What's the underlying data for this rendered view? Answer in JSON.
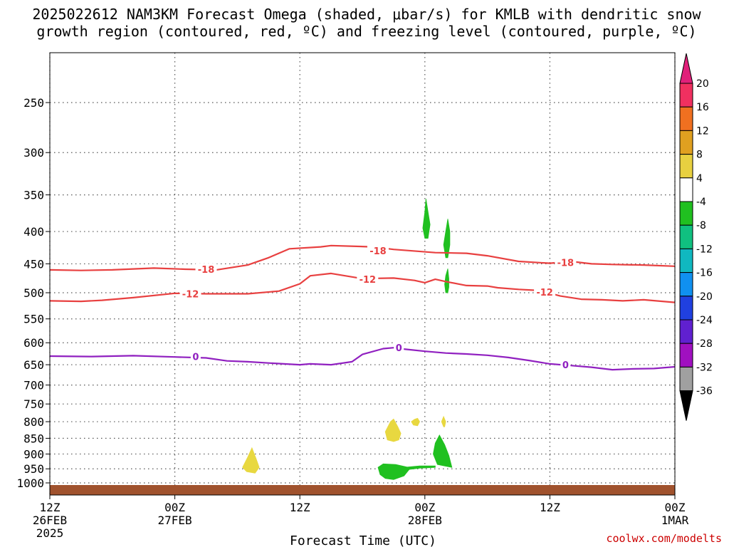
{
  "chart_data": {
    "type": "contour",
    "title_line1": "2025022612 NAM3KM Forecast Omega (shaded, μbar/s) for KMLB with dendritic snow",
    "title_line2": "growth region (contoured, red, ºC) and freezing level (contoured, purple, ºC)",
    "xlabel": "Forecast Time (UTC)",
    "credit": "coolwx.com/modelts",
    "xlim": [
      0,
      60
    ],
    "x_ticks": [
      {
        "x": 0,
        "lines": [
          "12Z",
          "26FEB",
          "2025"
        ]
      },
      {
        "x": 12,
        "lines": [
          "00Z",
          "27FEB"
        ]
      },
      {
        "x": 24,
        "lines": [
          "12Z"
        ]
      },
      {
        "x": 36,
        "lines": [
          "00Z",
          "28FEB"
        ]
      },
      {
        "x": 48,
        "lines": [
          "12Z"
        ]
      },
      {
        "x": 60,
        "lines": [
          "00Z",
          "1MAR"
        ]
      }
    ],
    "y_levels": [
      250,
      300,
      350,
      400,
      450,
      500,
      550,
      600,
      650,
      700,
      750,
      800,
      850,
      900,
      950,
      1000
    ],
    "ylim": [
      200,
      1050
    ],
    "y_scale": "log-pressure",
    "grid": true,
    "ground_color": "#a0522d",
    "colorbar": {
      "labels": [
        "20",
        "16",
        "12",
        "8",
        "4",
        "-4",
        "-8",
        "-12",
        "-16",
        "-20",
        "-24",
        "-28",
        "-32",
        "-36"
      ],
      "colors": [
        "#f03060",
        "#f07020",
        "#e0a020",
        "#e8d040",
        "#ffffff",
        "#20c020",
        "#10c080",
        "#10b8c0",
        "#1090f0",
        "#2040e0",
        "#6020d0",
        "#a010c0",
        "#a0a0a0"
      ],
      "top_arrow_color": "#e0207a",
      "bottom_arrow_color": "#000000"
    },
    "contours": [
      {
        "name": "-18",
        "color": "#e84040",
        "points": [
          [
            0,
            460
          ],
          [
            3,
            461
          ],
          [
            6,
            460
          ],
          [
            10,
            457
          ],
          [
            13,
            459
          ],
          [
            16,
            460
          ],
          [
            19,
            452
          ],
          [
            21,
            440
          ],
          [
            23,
            426
          ],
          [
            26,
            423
          ],
          [
            27,
            421
          ],
          [
            31,
            423
          ],
          [
            33,
            427
          ],
          [
            37,
            432
          ],
          [
            40,
            433
          ],
          [
            42,
            437
          ],
          [
            45,
            446
          ],
          [
            48,
            449
          ],
          [
            50,
            446
          ],
          [
            52,
            450
          ],
          [
            54,
            451
          ],
          [
            57,
            452
          ],
          [
            60,
            454
          ]
        ],
        "labels": [
          [
            15,
            459
          ],
          [
            31.5,
            429
          ],
          [
            49.5,
            448
          ]
        ]
      },
      {
        "name": "-12",
        "color": "#e84040",
        "points": [
          [
            0,
            515
          ],
          [
            3,
            516
          ],
          [
            5,
            514
          ],
          [
            8,
            509
          ],
          [
            12,
            501
          ],
          [
            15,
            502
          ],
          [
            19,
            502
          ],
          [
            22,
            497
          ],
          [
            24,
            484
          ],
          [
            25,
            470
          ],
          [
            27,
            466
          ],
          [
            30,
            475
          ],
          [
            33,
            474
          ],
          [
            35,
            478
          ],
          [
            36,
            482
          ],
          [
            37,
            476
          ],
          [
            38,
            480
          ],
          [
            40,
            487
          ],
          [
            42,
            488
          ],
          [
            43,
            491
          ],
          [
            45,
            494
          ],
          [
            47,
            496
          ],
          [
            49,
            506
          ],
          [
            51,
            512
          ],
          [
            53,
            513
          ],
          [
            55,
            515
          ],
          [
            57,
            513
          ],
          [
            60,
            518
          ]
        ],
        "labels": [
          [
            13.5,
            502
          ],
          [
            30.5,
            476
          ],
          [
            47.5,
            499
          ]
        ]
      },
      {
        "name": "0",
        "color": "#9020c0",
        "points": [
          [
            0,
            630
          ],
          [
            4,
            631
          ],
          [
            8,
            629
          ],
          [
            12,
            632
          ],
          [
            15,
            634
          ],
          [
            17,
            641
          ],
          [
            19,
            643
          ],
          [
            21,
            646
          ],
          [
            24,
            650
          ],
          [
            25,
            648
          ],
          [
            27,
            650
          ],
          [
            29,
            643
          ],
          [
            30,
            626
          ],
          [
            32,
            613
          ],
          [
            33,
            611
          ],
          [
            34,
            614
          ],
          [
            36,
            619
          ],
          [
            38,
            623
          ],
          [
            40,
            625
          ],
          [
            42,
            628
          ],
          [
            44,
            633
          ],
          [
            46,
            640
          ],
          [
            48,
            648
          ],
          [
            50,
            652
          ],
          [
            52,
            656
          ],
          [
            54,
            662
          ],
          [
            56,
            660
          ],
          [
            58,
            659
          ],
          [
            60,
            655
          ]
        ],
        "labels": [
          [
            14,
            631
          ],
          [
            33.5,
            611
          ],
          [
            49.5,
            650
          ]
        ]
      }
    ],
    "shaded_regions": [
      {
        "name": "omega-pos-1",
        "color": "#e8d840",
        "points": [
          [
            18.9,
            960
          ],
          [
            18.5,
            945
          ],
          [
            19.0,
            910
          ],
          [
            19.4,
            880
          ],
          [
            19.8,
            915
          ],
          [
            20.1,
            945
          ],
          [
            19.7,
            965
          ]
        ]
      },
      {
        "name": "omega-pos-2",
        "color": "#e8d840",
        "points": [
          [
            32.4,
            855
          ],
          [
            32.2,
            830
          ],
          [
            32.7,
            800
          ],
          [
            33.0,
            792
          ],
          [
            33.4,
            815
          ],
          [
            33.7,
            835
          ],
          [
            33.5,
            855
          ],
          [
            33.0,
            860
          ]
        ]
      },
      {
        "name": "omega-pos-3",
        "color": "#e8d840",
        "points": [
          [
            34.9,
            810
          ],
          [
            34.7,
            800
          ],
          [
            35.0,
            793
          ],
          [
            35.3,
            790
          ],
          [
            35.5,
            800
          ],
          [
            35.3,
            812
          ]
        ]
      },
      {
        "name": "omega-pos-4",
        "color": "#e8d840",
        "points": [
          [
            37.8,
            815
          ],
          [
            37.6,
            800
          ],
          [
            37.8,
            785
          ],
          [
            38.0,
            800
          ],
          [
            37.9,
            815
          ]
        ]
      },
      {
        "name": "omega-neg-1",
        "color": "#20c020",
        "points": [
          [
            36.0,
            410
          ],
          [
            35.8,
            395
          ],
          [
            36.0,
            372
          ],
          [
            36.1,
            355
          ],
          [
            36.3,
            372
          ],
          [
            36.5,
            390
          ],
          [
            36.3,
            410
          ]
        ]
      },
      {
        "name": "omega-neg-2",
        "color": "#20c020",
        "points": [
          [
            38.0,
            440
          ],
          [
            37.8,
            420
          ],
          [
            38.0,
            400
          ],
          [
            38.2,
            382
          ],
          [
            38.4,
            400
          ],
          [
            38.4,
            420
          ],
          [
            38.2,
            440
          ]
        ]
      },
      {
        "name": "omega-neg-3",
        "color": "#20c020",
        "points": [
          [
            38.0,
            500
          ],
          [
            37.9,
            485
          ],
          [
            38.0,
            470
          ],
          [
            38.2,
            458
          ],
          [
            38.3,
            475
          ],
          [
            38.3,
            490
          ],
          [
            38.2,
            500
          ]
        ]
      },
      {
        "name": "omega-neg-4",
        "color": "#20c020",
        "points": [
          [
            37.2,
            935
          ],
          [
            36.8,
            900
          ],
          [
            37.0,
            865
          ],
          [
            37.4,
            840
          ],
          [
            37.9,
            870
          ],
          [
            38.3,
            905
          ],
          [
            38.6,
            945
          ],
          [
            37.9,
            940
          ]
        ]
      },
      {
        "name": "omega-neg-5",
        "color": "#20c020",
        "points": [
          [
            31.7,
            970
          ],
          [
            31.5,
            945
          ],
          [
            32.0,
            933
          ],
          [
            33.2,
            935
          ],
          [
            34.3,
            944
          ],
          [
            35.5,
            940
          ],
          [
            37.0,
            940
          ],
          [
            37.0,
            945
          ],
          [
            35.5,
            948
          ],
          [
            34.5,
            952
          ],
          [
            34.0,
            975
          ],
          [
            33.0,
            988
          ],
          [
            32.2,
            984
          ]
        ]
      }
    ]
  }
}
